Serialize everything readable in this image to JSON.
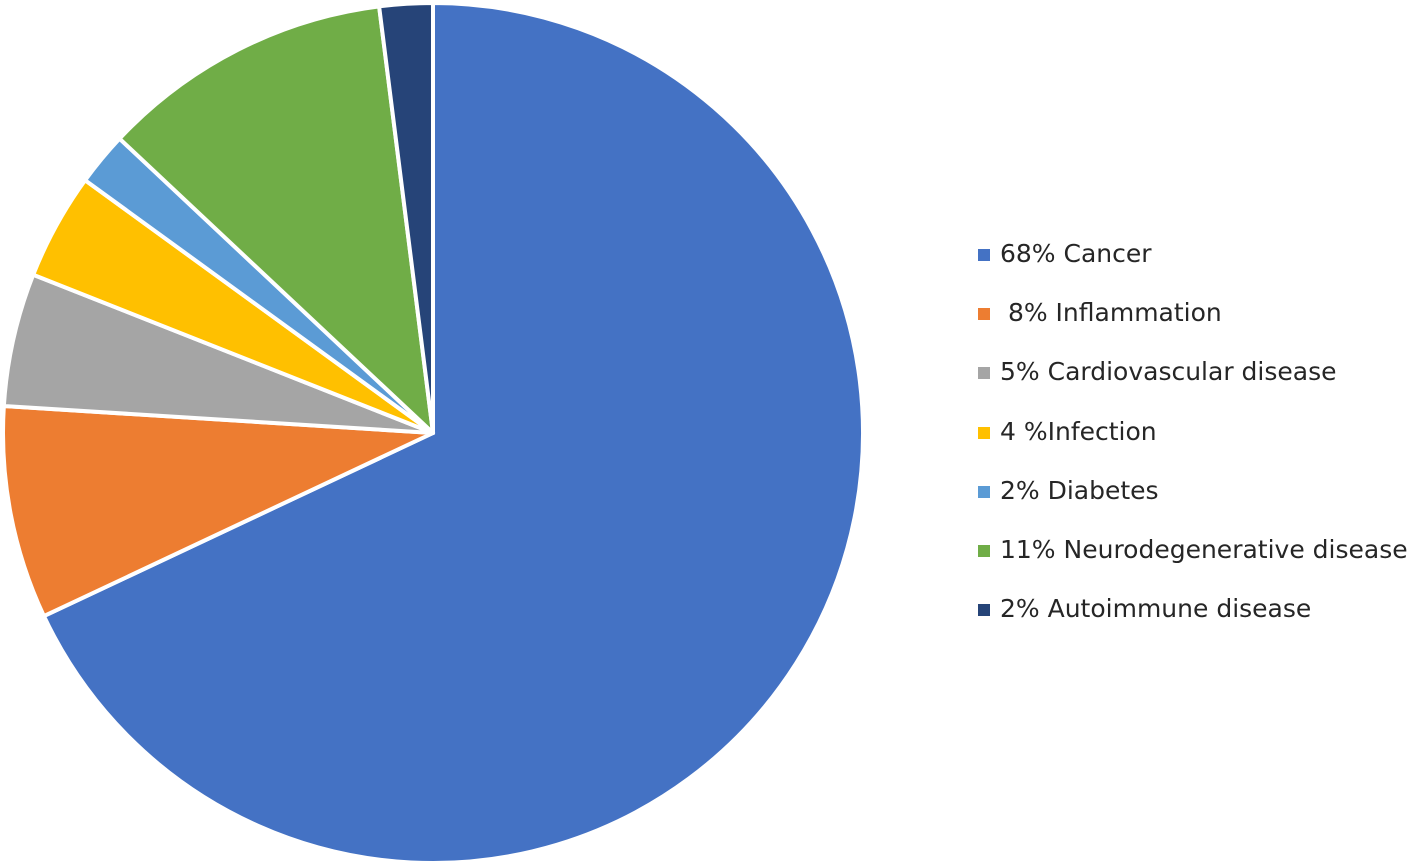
{
  "chart_data": {
    "type": "pie",
    "slices": [
      {
        "label": "68% Cancer",
        "value": 68,
        "color": "#4472C4"
      },
      {
        "label": " 8% Inflammation",
        "value": 8,
        "color": "#ED7D31"
      },
      {
        "label": "5% Cardiovascular disease",
        "value": 5,
        "color": "#A5A5A5"
      },
      {
        "label": "4 %Infection",
        "value": 4,
        "color": "#FFC000"
      },
      {
        "label": "2% Diabetes",
        "value": 2,
        "color": "#5B9BD5"
      },
      {
        "label": "11% Neurodegenerative disease",
        "value": 11,
        "color": "#70AD47"
      },
      {
        "label": "2% Autoimmune disease",
        "value": 2,
        "color": "#264478"
      }
    ],
    "legend_position": "right",
    "slice_order": "clockwise from top"
  }
}
